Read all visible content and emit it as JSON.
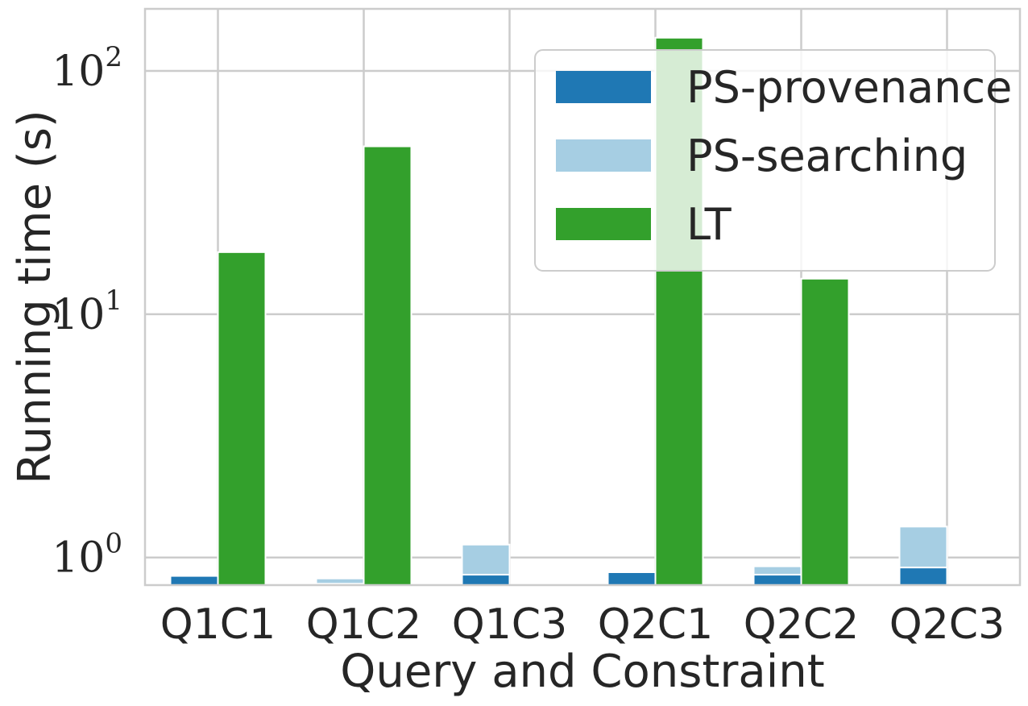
{
  "chart_data": {
    "type": "bar",
    "categories": [
      "Q1C1",
      "Q1C2",
      "Q1C3",
      "Q2C1",
      "Q2C2",
      "Q2C3"
    ],
    "series": [
      {
        "name": "PS-provenance",
        "color": "#1f78b4",
        "stack": "PS",
        "values": [
          0.84,
          0.78,
          0.85,
          0.87,
          0.85,
          0.91
        ]
      },
      {
        "name": "PS-searching",
        "color": "#a6cee3",
        "stack": "PS",
        "values": [
          0.0,
          0.04,
          0.28,
          0.0,
          0.07,
          0.43
        ]
      },
      {
        "name": "LT",
        "color": "#33a02c",
        "stack": "LT",
        "values": [
          18,
          49,
          null,
          137,
          14,
          null
        ]
      }
    ],
    "xlabel": "Query and Constraint",
    "ylabel": "Running time (s)",
    "yscale": "log",
    "ylim": [
      0.77,
      180
    ],
    "yticks": [
      {
        "base": "10",
        "exp": "0",
        "value": 1
      },
      {
        "base": "10",
        "exp": "1",
        "value": 10
      },
      {
        "base": "10",
        "exp": "2",
        "value": 100
      }
    ],
    "grid": true,
    "legend_position": "top-right"
  }
}
